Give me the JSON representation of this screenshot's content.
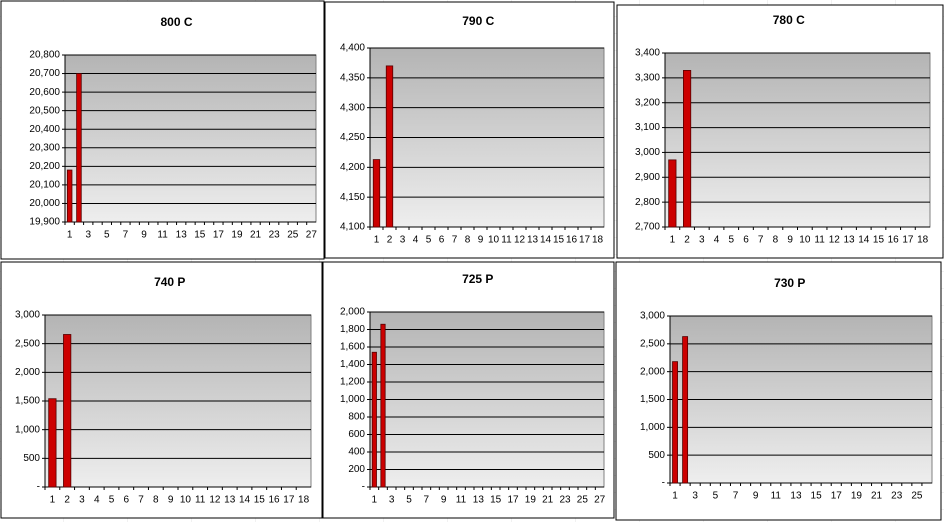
{
  "chart_data": [
    {
      "type": "bar",
      "title": "800 C",
      "color": "#cc0000",
      "grid": true,
      "categories": [
        "1",
        null,
        "3",
        null,
        "5",
        null,
        "7",
        null,
        "9",
        null,
        "11",
        null,
        "13",
        null,
        "15",
        null,
        "17",
        null,
        "19",
        null,
        "21",
        null,
        "23",
        null,
        "25",
        null,
        "27"
      ],
      "values": [
        20180,
        20700,
        null,
        null,
        null,
        null,
        null,
        null,
        null,
        null,
        null,
        null,
        null,
        null,
        null,
        null,
        null,
        null,
        null,
        null,
        null,
        null,
        null,
        null,
        null,
        null,
        null
      ],
      "ylim": [
        19900,
        20800
      ],
      "yticks": [
        {
          "value": 19900,
          "label": "19,900"
        },
        {
          "value": 20000,
          "label": "20,000"
        },
        {
          "value": 20100,
          "label": "20,100"
        },
        {
          "value": 20200,
          "label": "20,200"
        },
        {
          "value": 20300,
          "label": "20,300"
        },
        {
          "value": 20400,
          "label": "20,400"
        },
        {
          "value": 20500,
          "label": "20,500"
        },
        {
          "value": 20600,
          "label": "20,600"
        },
        {
          "value": 20700,
          "label": "20,700"
        },
        {
          "value": 20800,
          "label": "20,800"
        }
      ]
    },
    {
      "type": "bar",
      "title": "790 C",
      "color": "#cc0000",
      "grid": true,
      "categories": [
        "1",
        "2",
        "3",
        "4",
        "5",
        "6",
        "7",
        "8",
        "9",
        "10",
        "11",
        "12",
        "13",
        "14",
        "15",
        "16",
        "17",
        "18"
      ],
      "values": [
        4213,
        4370,
        null,
        null,
        null,
        null,
        null,
        null,
        null,
        null,
        null,
        null,
        null,
        null,
        null,
        null,
        null,
        null
      ],
      "ylim": [
        4100,
        4400
      ],
      "yticks": [
        {
          "value": 4100,
          "label": "4,100"
        },
        {
          "value": 4150,
          "label": "4,150"
        },
        {
          "value": 4200,
          "label": "4,200"
        },
        {
          "value": 4250,
          "label": "4,250"
        },
        {
          "value": 4300,
          "label": "4,300"
        },
        {
          "value": 4350,
          "label": "4,350"
        },
        {
          "value": 4400,
          "label": "4,400"
        }
      ]
    },
    {
      "type": "bar",
      "title": "780 C",
      "color": "#cc0000",
      "grid": true,
      "categories": [
        "1",
        "2",
        "3",
        "4",
        "5",
        "6",
        "7",
        "8",
        "9",
        "10",
        "11",
        "12",
        "13",
        "14",
        "15",
        "16",
        "17",
        "18"
      ],
      "values": [
        2970,
        3330,
        null,
        null,
        null,
        null,
        null,
        null,
        null,
        null,
        null,
        null,
        null,
        null,
        null,
        null,
        null,
        null
      ],
      "ylim": [
        2700,
        3400
      ],
      "yticks": [
        {
          "value": 2700,
          "label": "2,700"
        },
        {
          "value": 2800,
          "label": "2,800"
        },
        {
          "value": 2900,
          "label": "2,900"
        },
        {
          "value": 3000,
          "label": "3,000"
        },
        {
          "value": 3100,
          "label": "3,100"
        },
        {
          "value": 3200,
          "label": "3,200"
        },
        {
          "value": 3300,
          "label": "3,300"
        },
        {
          "value": 3400,
          "label": "3,400"
        }
      ]
    },
    {
      "type": "bar",
      "title": "740 P",
      "color": "#cc0000",
      "grid": true,
      "categories": [
        "1",
        "2",
        "3",
        "4",
        "5",
        "6",
        "7",
        "8",
        "9",
        "10",
        "11",
        "12",
        "13",
        "14",
        "15",
        "16",
        "17",
        "18"
      ],
      "values": [
        1540,
        2660,
        null,
        null,
        null,
        null,
        null,
        null,
        null,
        null,
        null,
        null,
        null,
        null,
        null,
        null,
        null,
        null
      ],
      "ylim": [
        0,
        3000
      ],
      "yticks": [
        {
          "value": 0,
          "label": "-"
        },
        500,
        {
          "value": 1000,
          "label": "1,000"
        },
        {
          "value": 1500,
          "label": "1,500"
        },
        {
          "value": 2000,
          "label": "2,000"
        },
        {
          "value": 2500,
          "label": "2,500"
        },
        {
          "value": 3000,
          "label": "3,000"
        }
      ]
    },
    {
      "type": "bar",
      "title": "725 P",
      "color": "#cc0000",
      "grid": true,
      "categories": [
        "1",
        null,
        "3",
        null,
        "5",
        null,
        "7",
        null,
        "9",
        null,
        "11",
        null,
        "13",
        null,
        "15",
        null,
        "17",
        null,
        "19",
        null,
        "21",
        null,
        "23",
        null,
        "25",
        null,
        "27"
      ],
      "values": [
        1540,
        1860,
        null,
        null,
        null,
        null,
        null,
        null,
        null,
        null,
        null,
        null,
        null,
        null,
        null,
        null,
        null,
        null,
        null,
        null,
        null,
        null,
        null,
        null,
        null,
        null,
        null
      ],
      "ylim": [
        0,
        2000
      ],
      "yticks": [
        {
          "value": 0,
          "label": "-"
        },
        200,
        400,
        600,
        800,
        {
          "value": 1000,
          "label": "1,000"
        },
        {
          "value": 1200,
          "label": "1,200"
        },
        {
          "value": 1400,
          "label": "1,400"
        },
        {
          "value": 1600,
          "label": "1,600"
        },
        {
          "value": 1800,
          "label": "1,800"
        },
        {
          "value": 2000,
          "label": "2,000"
        }
      ]
    },
    {
      "type": "bar",
      "title": "730 P",
      "color": "#cc0000",
      "grid": true,
      "categories": [
        "1",
        null,
        "3",
        null,
        "5",
        null,
        "7",
        null,
        "9",
        null,
        "11",
        null,
        "13",
        null,
        "15",
        null,
        "17",
        null,
        "19",
        null,
        "21",
        null,
        "23",
        null,
        "25",
        null
      ],
      "values": [
        2180,
        2630,
        null,
        null,
        null,
        null,
        null,
        null,
        null,
        null,
        null,
        null,
        null,
        null,
        null,
        null,
        null,
        null,
        null,
        null,
        null,
        null,
        null,
        null,
        null,
        null
      ],
      "ylim": [
        0,
        3000
      ],
      "yticks": [
        {
          "value": 0,
          "label": "-"
        },
        500,
        {
          "value": 1000,
          "label": "1,000"
        },
        {
          "value": 1500,
          "label": "1,500"
        },
        {
          "value": 2000,
          "label": "2,000"
        },
        {
          "value": 2500,
          "label": "2,500"
        },
        {
          "value": 3000,
          "label": "3,000"
        }
      ]
    }
  ]
}
